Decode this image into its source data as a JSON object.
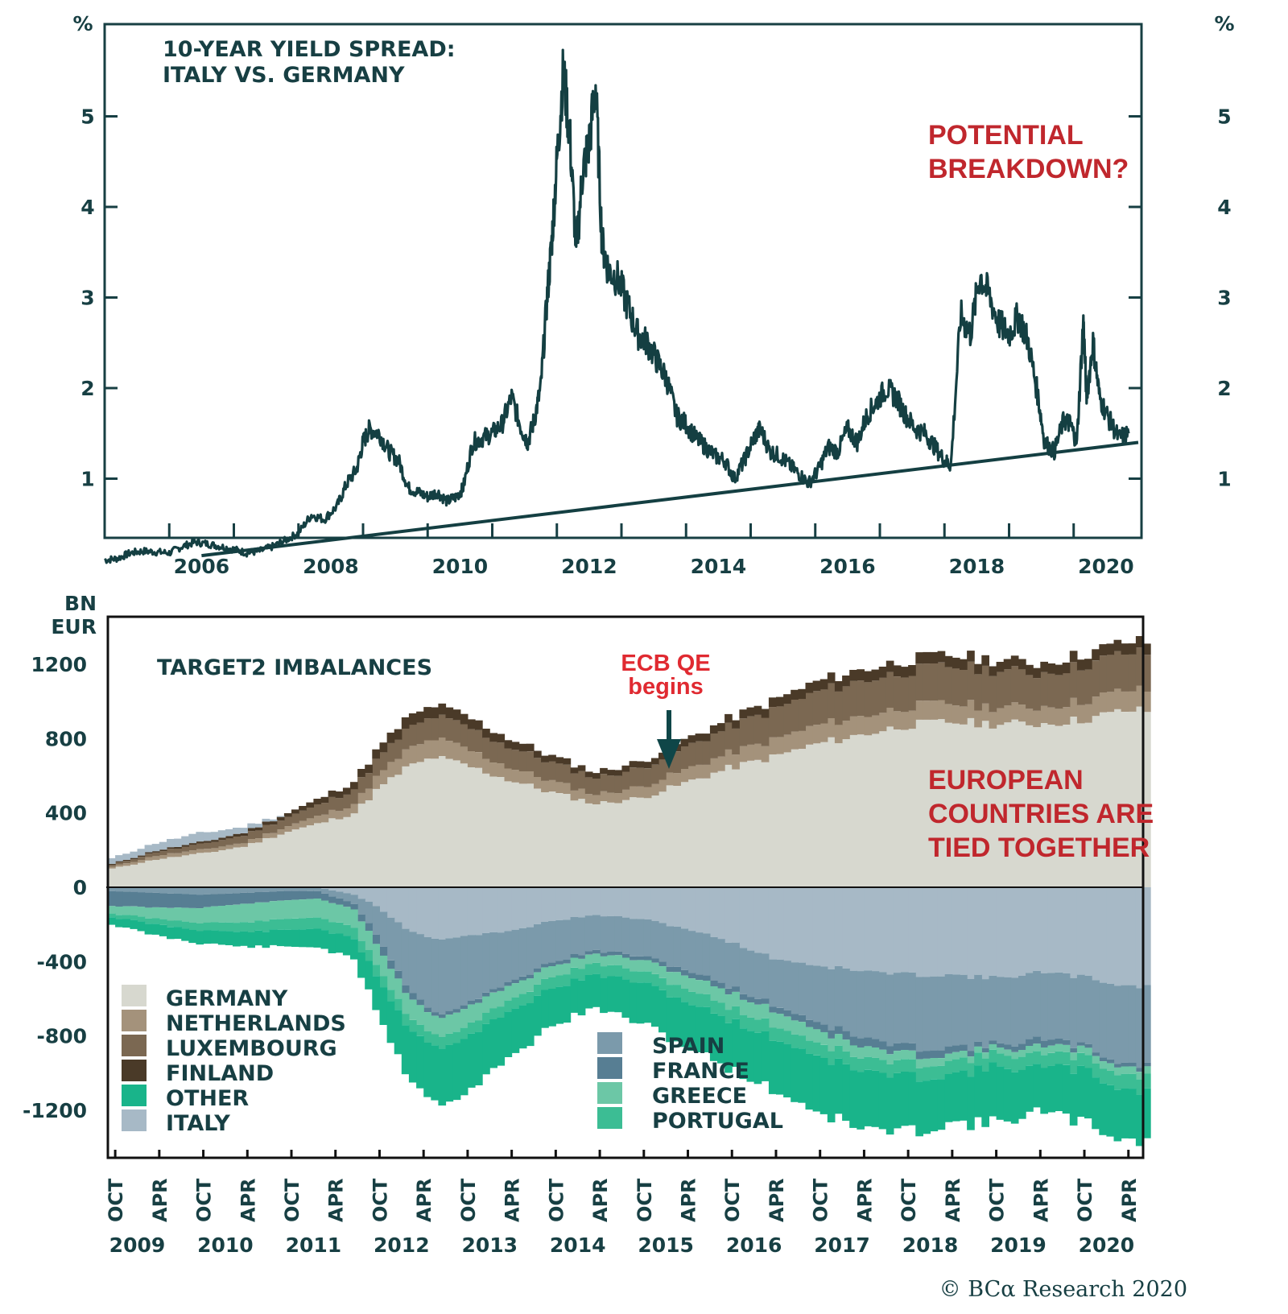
{
  "colors": {
    "ink": "#173f43",
    "line": "#143f42",
    "red": "#c0272d",
    "red_bright": "#e02a31",
    "germany": "#d7d8cf",
    "netherlands": "#a4927b",
    "luxembourg": "#7b6852",
    "finland": "#4a3a28",
    "other": "#19b48a",
    "italy": "#a7b9c6",
    "spain": "#7b9aab",
    "france": "#577e93",
    "greece": "#6cc7a6",
    "portugal": "#3cbd94"
  },
  "chart_data": [
    {
      "type": "line",
      "title": "10-YEAR YIELD SPREAD: ITALY VS. GERMANY",
      "title_lines": [
        "10-YEAR YIELD SPREAD:",
        "ITALY VS. GERMANY"
      ],
      "annotation_lines": [
        "POTENTIAL",
        "BREAKDOWN?"
      ],
      "ylabel_left": "%",
      "ylabel_right": "%",
      "ylim": [
        0,
        6
      ],
      "xlim": [
        2005.0,
        2021.05
      ],
      "yticks": [
        1,
        2,
        3,
        4,
        5
      ],
      "xtick_labels": [
        "2006",
        "2008",
        "2010",
        "2012",
        "2014",
        "2016",
        "2018",
        "2020"
      ],
      "xtick_label_years": [
        2006,
        2008,
        2010,
        2012,
        2014,
        2016,
        2018,
        2020
      ],
      "series": [
        {
          "name": "Italy-Germany 10Y spread",
          "x": [
            2005.0,
            2005.2,
            2005.4,
            2005.6,
            2005.8,
            2006.0,
            2006.2,
            2006.4,
            2006.6,
            2006.8,
            2007.0,
            2007.2,
            2007.4,
            2007.6,
            2007.8,
            2008.0,
            2008.2,
            2008.4,
            2008.6,
            2008.75,
            2008.9,
            2009.0,
            2009.1,
            2009.25,
            2009.4,
            2009.55,
            2009.7,
            2009.85,
            2010.0,
            2010.15,
            2010.3,
            2010.45,
            2010.55,
            2010.7,
            2010.85,
            2011.0,
            2011.15,
            2011.3,
            2011.45,
            2011.55,
            2011.65,
            2011.75,
            2011.85,
            2011.92,
            2012.0,
            2012.1,
            2012.2,
            2012.3,
            2012.4,
            2012.5,
            2012.6,
            2012.7,
            2012.8,
            2012.95,
            2013.1,
            2013.25,
            2013.4,
            2013.55,
            2013.7,
            2013.85,
            2014.0,
            2014.15,
            2014.3,
            2014.45,
            2014.6,
            2014.75,
            2014.9,
            2015.05,
            2015.15,
            2015.3,
            2015.45,
            2015.6,
            2015.75,
            2015.9,
            2016.05,
            2016.2,
            2016.35,
            2016.5,
            2016.65,
            2016.8,
            2016.95,
            2017.1,
            2017.25,
            2017.4,
            2017.55,
            2017.7,
            2017.85,
            2018.0,
            2018.1,
            2018.25,
            2018.4,
            2018.55,
            2018.7,
            2018.85,
            2019.0,
            2019.15,
            2019.3,
            2019.45,
            2019.55,
            2019.7,
            2019.85,
            2019.95,
            2020.05,
            2020.15,
            2020.2,
            2020.3,
            2020.4,
            2020.55,
            2020.7,
            2020.85
          ],
          "y": [
            0.1,
            0.12,
            0.18,
            0.2,
            0.19,
            0.18,
            0.25,
            0.3,
            0.28,
            0.25,
            0.22,
            0.18,
            0.2,
            0.25,
            0.32,
            0.4,
            0.6,
            0.55,
            0.7,
            0.95,
            1.1,
            1.4,
            1.55,
            1.5,
            1.3,
            1.2,
            0.9,
            0.85,
            0.8,
            0.85,
            0.75,
            0.8,
            0.9,
            1.4,
            1.45,
            1.5,
            1.6,
            1.9,
            1.55,
            1.4,
            1.65,
            2.0,
            3.0,
            3.6,
            4.5,
            5.5,
            4.8,
            3.5,
            4.4,
            4.7,
            5.35,
            3.6,
            3.3,
            3.2,
            2.9,
            2.6,
            2.5,
            2.3,
            2.1,
            1.7,
            1.6,
            1.45,
            1.35,
            1.25,
            1.2,
            1.0,
            1.2,
            1.45,
            1.55,
            1.3,
            1.25,
            1.15,
            1.05,
            0.95,
            1.1,
            1.35,
            1.3,
            1.55,
            1.4,
            1.7,
            1.85,
            2.0,
            1.9,
            1.7,
            1.55,
            1.5,
            1.35,
            1.2,
            1.15,
            2.8,
            2.6,
            3.25,
            3.0,
            2.7,
            2.6,
            2.8,
            2.5,
            1.9,
            1.4,
            1.3,
            1.65,
            1.6,
            1.4,
            2.75,
            1.9,
            2.5,
            1.9,
            1.65,
            1.45,
            1.5
          ]
        },
        {
          "name": "Trendline",
          "x": [
            2006.5,
            2021.0
          ],
          "y": [
            0.15,
            1.4
          ]
        }
      ]
    },
    {
      "type": "area",
      "stacked": true,
      "title": "TARGET2 IMBALANCES",
      "ylabel_lines": [
        "BN",
        "EUR"
      ],
      "ylim": [
        -1400,
        1300
      ],
      "yticks": [
        -1200,
        -800,
        -400,
        0,
        400,
        800,
        1200
      ],
      "ytick_labels": [
        "-1200",
        "-800",
        "-400",
        "0",
        "400",
        "800",
        "1200"
      ],
      "x_start": "2008-09",
      "x_step_months": 1,
      "xtick_labels": [
        "OCT",
        "APR",
        "OCT",
        "APR",
        "OCT",
        "APR",
        "OCT",
        "APR",
        "OCT",
        "APR",
        "OCT",
        "APR",
        "OCT",
        "APR",
        "OCT",
        "APR",
        "OCT",
        "APR",
        "OCT",
        "APR",
        "OCT",
        "APR",
        "OCT",
        "APR"
      ],
      "year_labels": [
        "2009",
        "2010",
        "2011",
        "2012",
        "2013",
        "2014",
        "2015",
        "2016",
        "2017",
        "2018",
        "2019",
        "2020"
      ],
      "annotation_qe_lines": [
        "ECB QE",
        "begins"
      ],
      "annotation_tied_lines": [
        "EUROPEAN",
        "COUNTRIES ARE",
        "TIED TOGETHER"
      ],
      "anchor_months": [
        0,
        6,
        12,
        18,
        24,
        28,
        33,
        36,
        40,
        44,
        48,
        54,
        60,
        66,
        72,
        78,
        84,
        90,
        96,
        102,
        108,
        114,
        120,
        126,
        132,
        138
      ],
      "series": [
        {
          "name": "GERMANY",
          "key": "germany",
          "values": [
            100,
            150,
            180,
            220,
            300,
            340,
            400,
            520,
            640,
            700,
            660,
            580,
            510,
            450,
            480,
            560,
            640,
            700,
            770,
            820,
            870,
            890,
            880,
            880,
            900,
            950
          ]
        },
        {
          "name": "NETHERLANDS",
          "key": "netherlands",
          "values": [
            10,
            20,
            20,
            20,
            30,
            40,
            50,
            70,
            90,
            100,
            90,
            70,
            60,
            50,
            60,
            70,
            80,
            90,
            100,
            100,
            100,
            100,
            90,
            90,
            100,
            110
          ]
        },
        {
          "name": "LUXEMBOURG",
          "key": "luxembourg",
          "values": [
            10,
            20,
            30,
            40,
            50,
            60,
            80,
            90,
            110,
            120,
            120,
            110,
            100,
            90,
            100,
            120,
            140,
            160,
            180,
            190,
            190,
            200,
            200,
            180,
            190,
            200
          ]
        },
        {
          "name": "FINLAND",
          "key": "finland",
          "values": [
            5,
            8,
            10,
            15,
            20,
            30,
            40,
            50,
            60,
            60,
            55,
            45,
            35,
            30,
            35,
            40,
            45,
            50,
            55,
            60,
            60,
            60,
            55,
            55,
            60,
            60
          ]
        },
        {
          "name": "OTHER",
          "key": "other",
          "values": [
            -40,
            -60,
            -70,
            -80,
            -90,
            -100,
            -110,
            -180,
            -260,
            -300,
            -300,
            -250,
            -200,
            -180,
            -220,
            -240,
            -260,
            -280,
            -300,
            -310,
            -300,
            -260,
            -300,
            -240,
            -280,
            -270
          ]
        },
        {
          "name": "ITALY",
          "key": "italy",
          "values": [
            30,
            40,
            50,
            30,
            0,
            0,
            -40,
            -100,
            -220,
            -280,
            -260,
            -240,
            -180,
            -150,
            -170,
            -220,
            -290,
            -380,
            -420,
            -450,
            -470,
            -470,
            -490,
            -460,
            -480,
            -530
          ]
        },
        {
          "name": "SPAIN",
          "key": "spain",
          "values": [
            -20,
            -30,
            -40,
            -30,
            -20,
            -20,
            -50,
            -150,
            -300,
            -400,
            -370,
            -280,
            -220,
            -190,
            -200,
            -220,
            -240,
            -250,
            -300,
            -360,
            -390,
            -390,
            -360,
            -360,
            -370,
            -420
          ]
        },
        {
          "name": "FRANCE",
          "key": "france",
          "values": [
            -80,
            -80,
            -70,
            -60,
            -50,
            -40,
            -30,
            -50,
            -40,
            -20,
            -20,
            -20,
            -20,
            -20,
            -20,
            -30,
            -30,
            -30,
            -40,
            -50,
            -40,
            -40,
            -20,
            -40,
            -20,
            -20
          ]
        },
        {
          "name": "GREECE",
          "key": "greece",
          "values": [
            -40,
            -60,
            -80,
            -100,
            -100,
            -100,
            -100,
            -110,
            -110,
            -100,
            -100,
            -80,
            -60,
            -50,
            -60,
            -70,
            -80,
            -80,
            -70,
            -60,
            -50,
            -40,
            -30,
            -40,
            -40,
            -40
          ]
        },
        {
          "name": "PORTUGAL",
          "key": "portugal",
          "values": [
            -20,
            -30,
            -40,
            -50,
            -60,
            -60,
            -60,
            -60,
            -60,
            -60,
            -60,
            -60,
            -60,
            -60,
            -60,
            -70,
            -70,
            -70,
            -70,
            -70,
            -70,
            -70,
            -70,
            -70,
            -70,
            -80
          ]
        }
      ],
      "legend_left": [
        "GERMANY",
        "NETHERLANDS",
        "LUXEMBOURG",
        "FINLAND",
        "OTHER",
        "ITALY"
      ],
      "legend_right": [
        "SPAIN",
        "FRANCE",
        "GREECE",
        "PORTUGAL"
      ],
      "legend_left_placement": "lower-left",
      "legend_right_placement": "lower-center"
    }
  ],
  "footer": {
    "copyright": "© BCα Research 2020"
  }
}
